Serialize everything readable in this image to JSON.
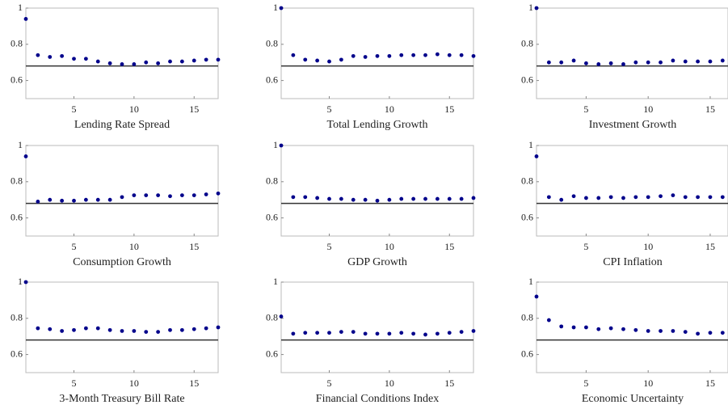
{
  "chart_data": [
    {
      "type": "scatter",
      "title": "Lending Rate Spread",
      "color": "#00008b",
      "hline": 0.68,
      "xlim": [
        1,
        17
      ],
      "ylim": [
        0.5,
        1
      ],
      "xticks": [
        5,
        10,
        15
      ],
      "yticks": [
        0.6,
        0.8,
        1
      ],
      "x": [
        1,
        2,
        3,
        4,
        5,
        6,
        7,
        8,
        9,
        10,
        11,
        12,
        13,
        14,
        15,
        16,
        17
      ],
      "values": [
        0.94,
        0.74,
        0.73,
        0.735,
        0.72,
        0.72,
        0.705,
        0.695,
        0.69,
        0.69,
        0.7,
        0.695,
        0.705,
        0.705,
        0.71,
        0.715,
        0.715
      ]
    },
    {
      "type": "scatter",
      "title": "Total Lending Growth",
      "color": "#00008b",
      "hline": 0.68,
      "xlim": [
        1,
        17
      ],
      "ylim": [
        0.5,
        1
      ],
      "xticks": [
        5,
        10,
        15
      ],
      "yticks": [
        0.6,
        0.8,
        1
      ],
      "x": [
        1,
        2,
        3,
        4,
        5,
        6,
        7,
        8,
        9,
        10,
        11,
        12,
        13,
        14,
        15,
        16,
        17
      ],
      "values": [
        1.0,
        0.74,
        0.715,
        0.71,
        0.705,
        0.715,
        0.735,
        0.73,
        0.735,
        0.735,
        0.74,
        0.74,
        0.74,
        0.745,
        0.74,
        0.74,
        0.735
      ]
    },
    {
      "type": "scatter",
      "title": "Investment Growth",
      "color": "#00008b",
      "hline": 0.68,
      "xlim": [
        1,
        16.5
      ],
      "ylim": [
        0.5,
        1
      ],
      "xticks": [
        5,
        10,
        15
      ],
      "yticks": [
        0.6,
        0.8,
        1
      ],
      "x": [
        1,
        2,
        3,
        4,
        5,
        6,
        7,
        8,
        9,
        10,
        11,
        12,
        13,
        14,
        15,
        16
      ],
      "values": [
        1.0,
        0.7,
        0.7,
        0.71,
        0.695,
        0.69,
        0.695,
        0.69,
        0.7,
        0.7,
        0.7,
        0.71,
        0.705,
        0.705,
        0.705,
        0.71
      ]
    },
    {
      "type": "scatter",
      "title": "Consumption Growth",
      "color": "#00008b",
      "hline": 0.68,
      "xlim": [
        1,
        17
      ],
      "ylim": [
        0.5,
        1
      ],
      "xticks": [
        5,
        10,
        15
      ],
      "yticks": [
        0.6,
        0.8,
        1
      ],
      "x": [
        1,
        2,
        3,
        4,
        5,
        6,
        7,
        8,
        9,
        10,
        11,
        12,
        13,
        14,
        15,
        16,
        17
      ],
      "values": [
        0.94,
        0.69,
        0.7,
        0.695,
        0.695,
        0.7,
        0.7,
        0.7,
        0.715,
        0.725,
        0.725,
        0.725,
        0.72,
        0.725,
        0.725,
        0.73,
        0.735
      ]
    },
    {
      "type": "scatter",
      "title": "GDP Growth",
      "color": "#00008b",
      "hline": 0.68,
      "xlim": [
        1,
        17
      ],
      "ylim": [
        0.5,
        1
      ],
      "xticks": [
        5,
        10,
        15
      ],
      "yticks": [
        0.6,
        0.8,
        1
      ],
      "x": [
        1,
        2,
        3,
        4,
        5,
        6,
        7,
        8,
        9,
        10,
        11,
        12,
        13,
        14,
        15,
        16,
        17
      ],
      "values": [
        1.0,
        0.715,
        0.715,
        0.71,
        0.705,
        0.705,
        0.7,
        0.7,
        0.695,
        0.7,
        0.705,
        0.705,
        0.705,
        0.705,
        0.705,
        0.705,
        0.71
      ]
    },
    {
      "type": "scatter",
      "title": "CPI Inflation",
      "color": "#00008b",
      "hline": 0.68,
      "xlim": [
        1,
        16.5
      ],
      "ylim": [
        0.5,
        1
      ],
      "xticks": [
        5,
        10,
        15
      ],
      "yticks": [
        0.6,
        0.8,
        1
      ],
      "x": [
        1,
        2,
        3,
        4,
        5,
        6,
        7,
        8,
        9,
        10,
        11,
        12,
        13,
        14,
        15,
        16
      ],
      "values": [
        0.94,
        0.715,
        0.7,
        0.72,
        0.71,
        0.71,
        0.715,
        0.71,
        0.715,
        0.715,
        0.72,
        0.725,
        0.715,
        0.715,
        0.715,
        0.715
      ]
    },
    {
      "type": "scatter",
      "title": "3-Month Treasury Bill Rate",
      "color": "#00008b",
      "hline": 0.68,
      "xlim": [
        1,
        17
      ],
      "ylim": [
        0.5,
        1
      ],
      "xticks": [
        5,
        10,
        15
      ],
      "yticks": [
        0.6,
        0.8,
        1
      ],
      "x": [
        1,
        2,
        3,
        4,
        5,
        6,
        7,
        8,
        9,
        10,
        11,
        12,
        13,
        14,
        15,
        16,
        17
      ],
      "values": [
        1.0,
        0.745,
        0.74,
        0.73,
        0.735,
        0.745,
        0.745,
        0.735,
        0.73,
        0.73,
        0.725,
        0.725,
        0.735,
        0.735,
        0.74,
        0.745,
        0.75
      ]
    },
    {
      "type": "scatter",
      "title": "Financial Conditions Index",
      "color": "#00008b",
      "hline": 0.68,
      "xlim": [
        1,
        17
      ],
      "ylim": [
        0.5,
        1
      ],
      "xticks": [
        5,
        10,
        15
      ],
      "yticks": [
        0.6,
        0.8,
        1
      ],
      "x": [
        1,
        2,
        3,
        4,
        5,
        6,
        7,
        8,
        9,
        10,
        11,
        12,
        13,
        14,
        15,
        16,
        17
      ],
      "values": [
        0.81,
        0.715,
        0.72,
        0.72,
        0.72,
        0.725,
        0.725,
        0.715,
        0.715,
        0.715,
        0.72,
        0.715,
        0.71,
        0.715,
        0.72,
        0.725,
        0.73
      ]
    },
    {
      "type": "scatter",
      "title": "Economic Uncertainty",
      "color": "#00008b",
      "hline": 0.68,
      "xlim": [
        1,
        16.5
      ],
      "ylim": [
        0.5,
        1
      ],
      "xticks": [
        5,
        10,
        15
      ],
      "yticks": [
        0.6,
        0.8,
        1
      ],
      "x": [
        1,
        2,
        3,
        4,
        5,
        6,
        7,
        8,
        9,
        10,
        11,
        12,
        13,
        14,
        15,
        16
      ],
      "values": [
        0.92,
        0.79,
        0.755,
        0.75,
        0.75,
        0.74,
        0.745,
        0.74,
        0.735,
        0.73,
        0.73,
        0.73,
        0.725,
        0.715,
        0.72,
        0.72
      ]
    }
  ]
}
